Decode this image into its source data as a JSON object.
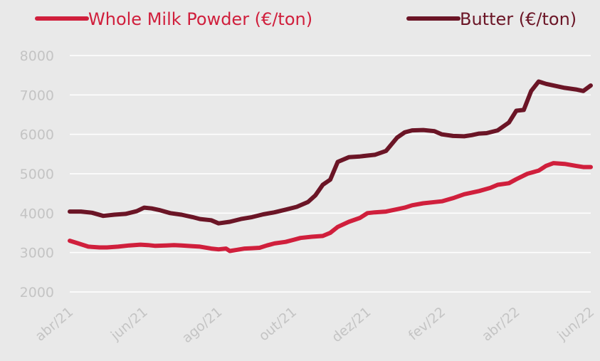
{
  "chart_data": {
    "type": "line",
    "title": "",
    "xlabel": "",
    "ylabel": "",
    "ylim": [
      2000,
      8000
    ],
    "yticks": [
      2000,
      3000,
      4000,
      5000,
      6000,
      7000,
      8000
    ],
    "xlim": [
      0,
      14
    ],
    "x_ticks": [
      {
        "x": 0,
        "label": "abr/21"
      },
      {
        "x": 2,
        "label": "jun/21"
      },
      {
        "x": 4,
        "label": "ago/21"
      },
      {
        "x": 6,
        "label": "out/21"
      },
      {
        "x": 8,
        "label": "dez/21"
      },
      {
        "x": 10,
        "label": "fev/22"
      },
      {
        "x": 12,
        "label": "abr/22"
      },
      {
        "x": 14,
        "label": "jun/22"
      }
    ],
    "grid": true,
    "legend": "top",
    "series": [
      {
        "name": "Whole Milk Powder (€/ton)",
        "color": "#d01f3c",
        "x": [
          0,
          0.2,
          0.5,
          0.8,
          1.0,
          1.3,
          1.6,
          1.9,
          2.1,
          2.3,
          2.6,
          2.8,
          3.0,
          3.3,
          3.5,
          3.8,
          4.0,
          4.2,
          4.3,
          4.5,
          4.7,
          4.9,
          5.1,
          5.3,
          5.5,
          5.8,
          6.0,
          6.2,
          6.5,
          6.8,
          7.0,
          7.2,
          7.5,
          7.8,
          8.0,
          8.2,
          8.5,
          8.8,
          9.0,
          9.2,
          9.5,
          9.8,
          10.0,
          10.3,
          10.6,
          10.8,
          11.0,
          11.3,
          11.5,
          11.8,
          12.0,
          12.3,
          12.6,
          12.8,
          13.0,
          13.3,
          13.6,
          13.8,
          14.0
        ],
        "y": [
          3300,
          3240,
          3150,
          3130,
          3130,
          3150,
          3180,
          3200,
          3190,
          3170,
          3180,
          3190,
          3180,
          3160,
          3150,
          3100,
          3080,
          3100,
          3040,
          3070,
          3100,
          3110,
          3120,
          3180,
          3230,
          3270,
          3320,
          3370,
          3400,
          3420,
          3500,
          3650,
          3780,
          3880,
          4000,
          4020,
          4040,
          4100,
          4140,
          4200,
          4250,
          4280,
          4300,
          4380,
          4480,
          4520,
          4560,
          4640,
          4720,
          4760,
          4860,
          5000,
          5080,
          5200,
          5270,
          5250,
          5200,
          5170,
          5170
        ]
      },
      {
        "name": "Butter (€/ton)",
        "color": "#6b1526",
        "x": [
          0,
          0.3,
          0.6,
          0.9,
          1.2,
          1.5,
          1.8,
          2.0,
          2.2,
          2.4,
          2.7,
          3.0,
          3.3,
          3.5,
          3.8,
          4.0,
          4.3,
          4.6,
          4.9,
          5.2,
          5.5,
          5.8,
          6.1,
          6.4,
          6.6,
          6.8,
          7.0,
          7.2,
          7.5,
          7.8,
          8.0,
          8.2,
          8.5,
          8.8,
          9.0,
          9.2,
          9.5,
          9.8,
          10.0,
          10.3,
          10.6,
          10.8,
          11.0,
          11.2,
          11.5,
          11.8,
          12.0,
          12.2,
          12.4,
          12.6,
          12.8,
          13.0,
          13.3,
          13.6,
          13.8,
          14.0
        ],
        "y": [
          4040,
          4040,
          4010,
          3930,
          3960,
          3980,
          4050,
          4140,
          4120,
          4080,
          4000,
          3960,
          3900,
          3850,
          3820,
          3740,
          3780,
          3850,
          3900,
          3970,
          4020,
          4090,
          4160,
          4280,
          4450,
          4720,
          4850,
          5300,
          5420,
          5440,
          5460,
          5480,
          5580,
          5920,
          6050,
          6100,
          6110,
          6080,
          6000,
          5960,
          5950,
          5980,
          6020,
          6030,
          6100,
          6300,
          6600,
          6620,
          7100,
          7340,
          7280,
          7240,
          7180,
          7140,
          7100,
          7240
        ]
      }
    ]
  }
}
